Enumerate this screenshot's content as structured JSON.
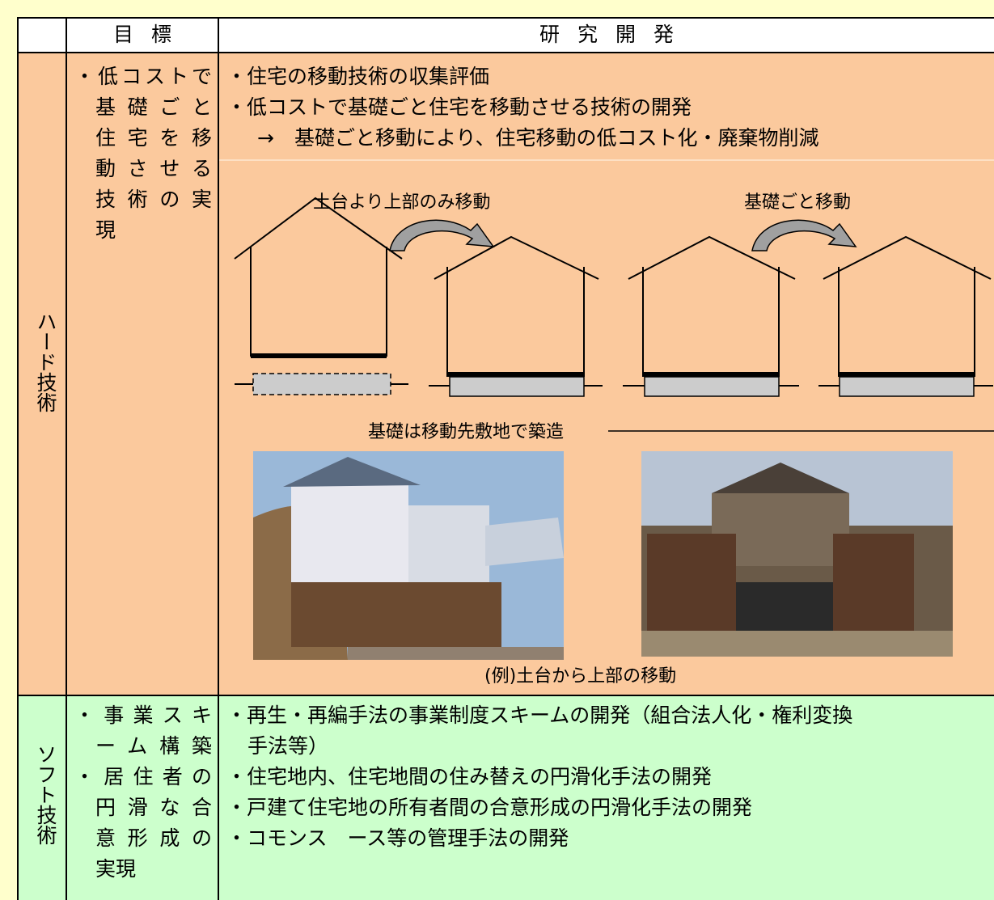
{
  "header": {
    "goal": "目標",
    "research": "研究開発"
  },
  "rows": [
    {
      "label": "ハード技術",
      "goal_lines": [
        "・低コストで",
        "基礎ごと",
        "住宅を移",
        "動させる",
        "技術の実",
        "現"
      ],
      "research_lines": [
        "・住宅の移動技術の収集評価",
        "・低コストで基礎ごと住宅を移動させる技術の開発",
        "→　基礎ごと移動により、住宅移動の低コスト化・廃棄物削減"
      ],
      "diagram": {
        "left_label": "土台より上部のみ移動",
        "right_label": "基礎ごと移動",
        "note": "基礎は移動先敷地で築造",
        "caption": "(例)土台から上部の移動"
      }
    },
    {
      "label": "ソフト技術",
      "goal_lines": [
        "・事業スキ",
        "ーム構築",
        "・居住者の",
        "円滑な合",
        "意形成の",
        "実現"
      ],
      "research_lines": [
        "・再生・再編手法の事業制度スキームの開発（組合法人化・権利変換",
        "手法等）",
        "・住宅地内、住宅地間の住み替えの円滑化手法の開発",
        "・戸建て住宅地の所有者間の合意形成の円滑化手法の開発",
        "・コモンス　ース等の管理手法の開発"
      ]
    }
  ]
}
